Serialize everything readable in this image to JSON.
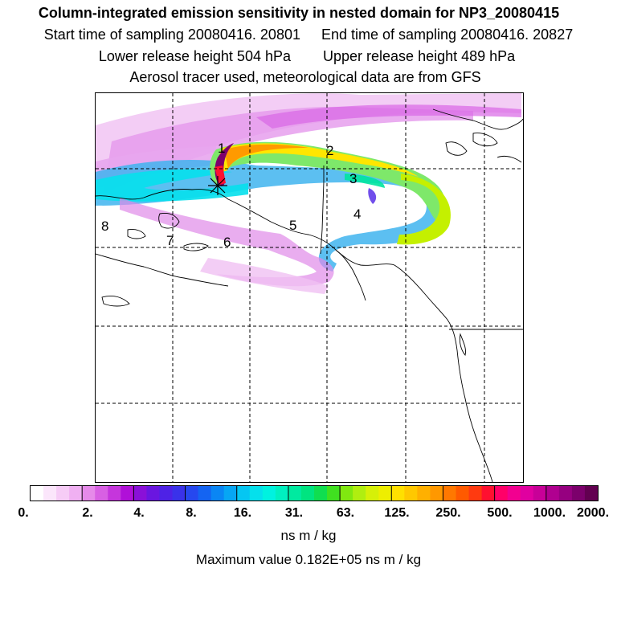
{
  "title": "Column-integrated emission sensitivity in nested domain for NP3_20080415",
  "sampling": {
    "start": "Start time of sampling 20080416. 20801",
    "end": "End time of sampling 20080416. 20827"
  },
  "release": {
    "lower": "Lower release height  504 hPa",
    "upper": "Upper release height  489 hPa"
  },
  "note": "Aerosol tracer used, meteorological data are from GFS",
  "map": {
    "region_labels": [
      "1",
      "2",
      "3",
      "4",
      "5",
      "6",
      "7",
      "8"
    ]
  },
  "colorbar": {
    "ticks": [
      "0.",
      "2.",
      "4.",
      "8.",
      "16.",
      "31.",
      "63.",
      "125.",
      "250.",
      "500.",
      "1000.",
      "2000."
    ],
    "colors": [
      "#ffffff",
      "#fbe6fb",
      "#f6ccf6",
      "#f0b0f2",
      "#e68ae9",
      "#d860e3",
      "#c536dc",
      "#b010d8",
      "#8a10d8",
      "#6a16e0",
      "#4e22e6",
      "#3a32ea",
      "#2648ef",
      "#1464f2",
      "#0a86f4",
      "#07a6f4",
      "#05c6f2",
      "#05e0ec",
      "#00f2e0",
      "#00f0c0",
      "#00eaa0",
      "#00e480",
      "#10de50",
      "#40e020",
      "#80e810",
      "#b0ee10",
      "#d6f008",
      "#eeee00",
      "#ffe000",
      "#ffc800",
      "#ffb000",
      "#ff9800",
      "#ff7800",
      "#ff5a00",
      "#ff3a10",
      "#ff1030",
      "#ff0068",
      "#f20090",
      "#e000a0",
      "#c80098",
      "#b00090",
      "#960080",
      "#7c006c",
      "#620050"
    ],
    "unit": "ns m / kg"
  },
  "max_value": "Maximum value  0.182E+05 ns m / kg"
}
